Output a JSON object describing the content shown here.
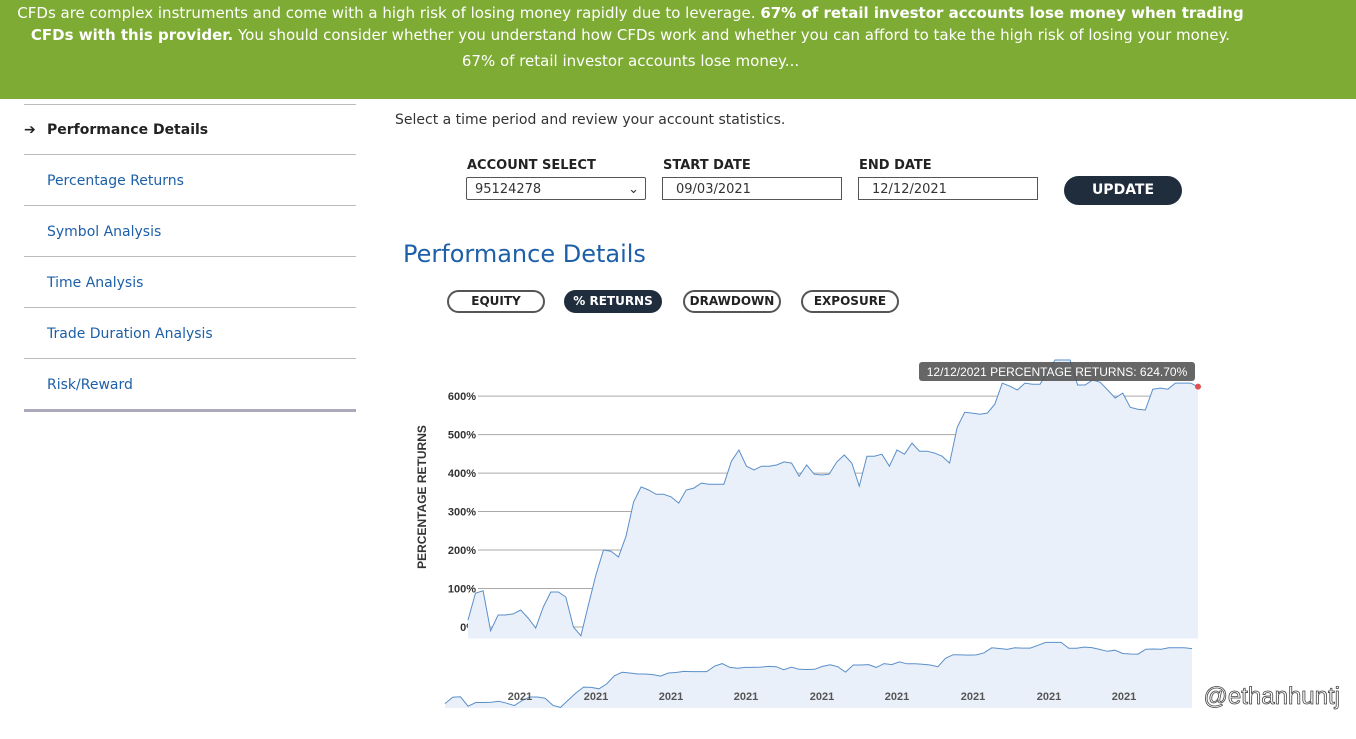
{
  "banner": {
    "text_1": "CFDs are complex instruments and come with a high risk of losing money rapidly due to leverage.",
    "text_bold": "67% of retail investor accounts lose money when trading CFDs with this provider.",
    "text_2": "You should consider whether you understand how CFDs work and whether you can afford to take the high risk of losing your money.",
    "summary": "67% of retail investor accounts lose money..."
  },
  "sidebar": {
    "items": [
      "Performance Details",
      "Percentage Returns",
      "Symbol Analysis",
      "Time Analysis",
      "Trade Duration Analysis",
      "Risk/Reward"
    ]
  },
  "intro": "Select a time period and review your account statistics.",
  "form": {
    "account_label": "ACCOUNT SELECT",
    "account_value": "95124278",
    "start_label": "START DATE",
    "start_value": "09/03/2021",
    "end_label": "END DATE",
    "end_value": "12/12/2021",
    "button": "UPDATE"
  },
  "heading": "Performance Details",
  "tabs": [
    "EQUITY",
    "% RETURNS",
    "DRAWDOWN",
    "EXPOSURE"
  ],
  "chart_data": {
    "type": "line",
    "y_label": "PERCENTAGE RETURNS",
    "color": "#5b8fc9",
    "ylim": [
      -30,
      720
    ],
    "yticks": [
      {
        "value": 0,
        "label": "0%"
      },
      {
        "value": 100,
        "label": "100%"
      },
      {
        "value": 200,
        "label": "200%"
      },
      {
        "value": 300,
        "label": "300%"
      },
      {
        "value": 400,
        "label": "400%"
      },
      {
        "value": 500,
        "label": "500%"
      },
      {
        "value": 600,
        "label": "600%"
      }
    ],
    "grid": true,
    "values": [
      18,
      88,
      94,
      -10,
      31,
      31,
      34,
      44,
      23,
      -3,
      52,
      91,
      91,
      78,
      0,
      -23,
      57,
      135,
      200,
      197,
      182,
      236,
      325,
      364,
      356,
      345,
      345,
      338,
      322,
      356,
      361,
      374,
      371,
      371,
      371,
      431,
      460,
      418,
      408,
      418,
      418,
      421,
      429,
      426,
      392,
      421,
      397,
      395,
      397,
      429,
      447,
      426,
      366,
      444,
      444,
      449,
      418,
      460,
      449,
      478,
      457,
      457,
      452,
      444,
      426,
      519,
      558,
      556,
      553,
      556,
      579,
      634,
      626,
      616,
      634,
      631,
      631,
      662,
      694,
      694,
      694,
      629,
      629,
      642,
      636,
      616,
      595,
      608,
      571,
      566,
      564,
      618,
      621,
      618,
      634,
      634,
      634,
      624.7
    ],
    "tooltip": "12/12/2021 PERCENTAGE RETURNS: 624.70%",
    "navigator_labels": [
      "2021",
      "2021",
      "2021",
      "2021",
      "2021",
      "2021",
      "2021",
      "2021",
      "2021"
    ]
  },
  "watermark": "@ethanhuntj"
}
